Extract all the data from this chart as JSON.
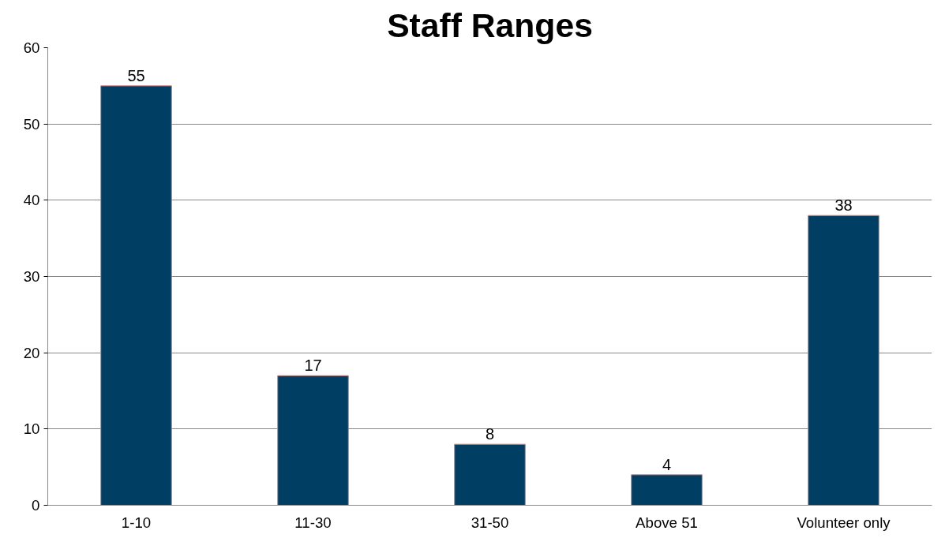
{
  "chart_data": {
    "type": "bar",
    "title": "Staff Ranges",
    "categories": [
      "1-10",
      "11-30",
      "31-50",
      "Above 51",
      "Volunteer only"
    ],
    "values": [
      55,
      17,
      8,
      4,
      38
    ],
    "color": "#003f63",
    "ylim": [
      0,
      60
    ],
    "yticks": [
      0,
      10,
      20,
      30,
      40,
      50,
      60
    ],
    "grid": "y",
    "data_labels": true
  }
}
